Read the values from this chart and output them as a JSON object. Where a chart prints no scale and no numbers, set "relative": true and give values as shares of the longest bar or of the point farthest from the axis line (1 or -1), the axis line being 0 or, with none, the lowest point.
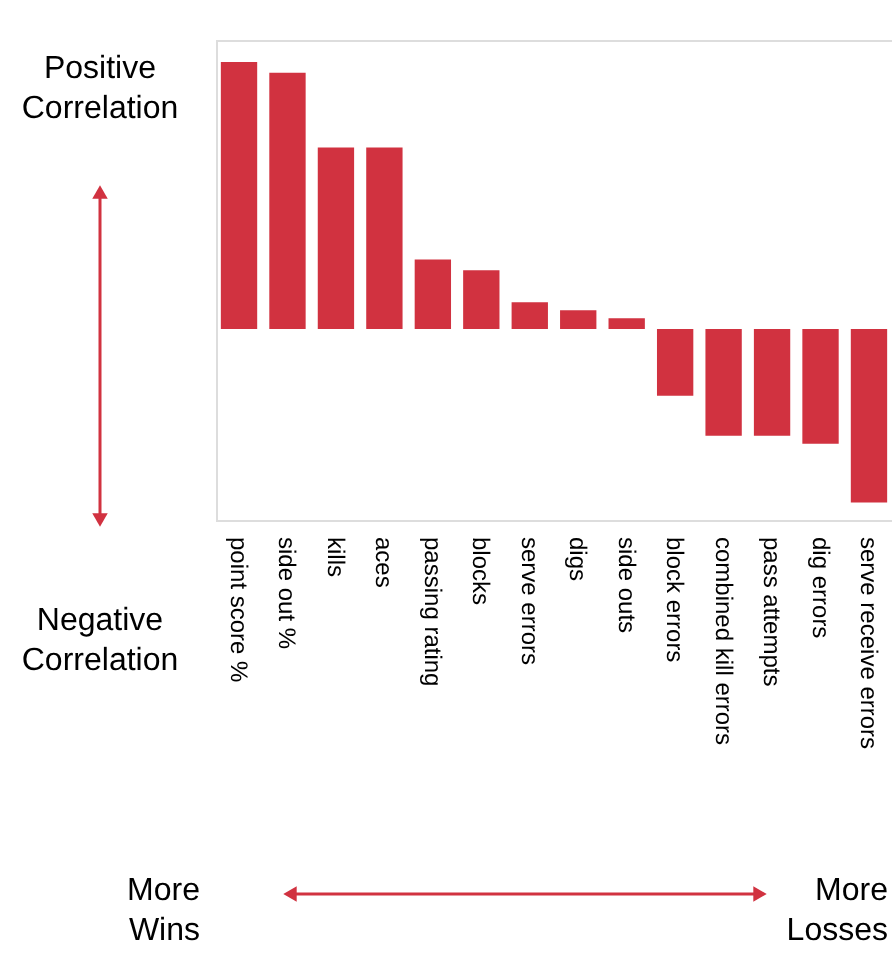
{
  "chart_data": {
    "type": "bar",
    "relative": true,
    "color": "#d13240",
    "categories": [
      "point score %",
      "side out %",
      "kills",
      "aces",
      "passing rating",
      "blocks",
      "serve errors",
      "digs",
      "side outs",
      "block errors",
      "combined kill errors",
      "pass attempts",
      "dig errors",
      "serve receive errors"
    ],
    "values": [
      1,
      0.96,
      0.68,
      0.68,
      0.26,
      0.22,
      0.1,
      0.07,
      0.04,
      -0.25,
      -0.4,
      -0.4,
      -0.43,
      -0.65
    ],
    "annotations": [
      "Positive Correlation",
      "Negative Correlation",
      "More Wins",
      "More Losses"
    ]
  }
}
